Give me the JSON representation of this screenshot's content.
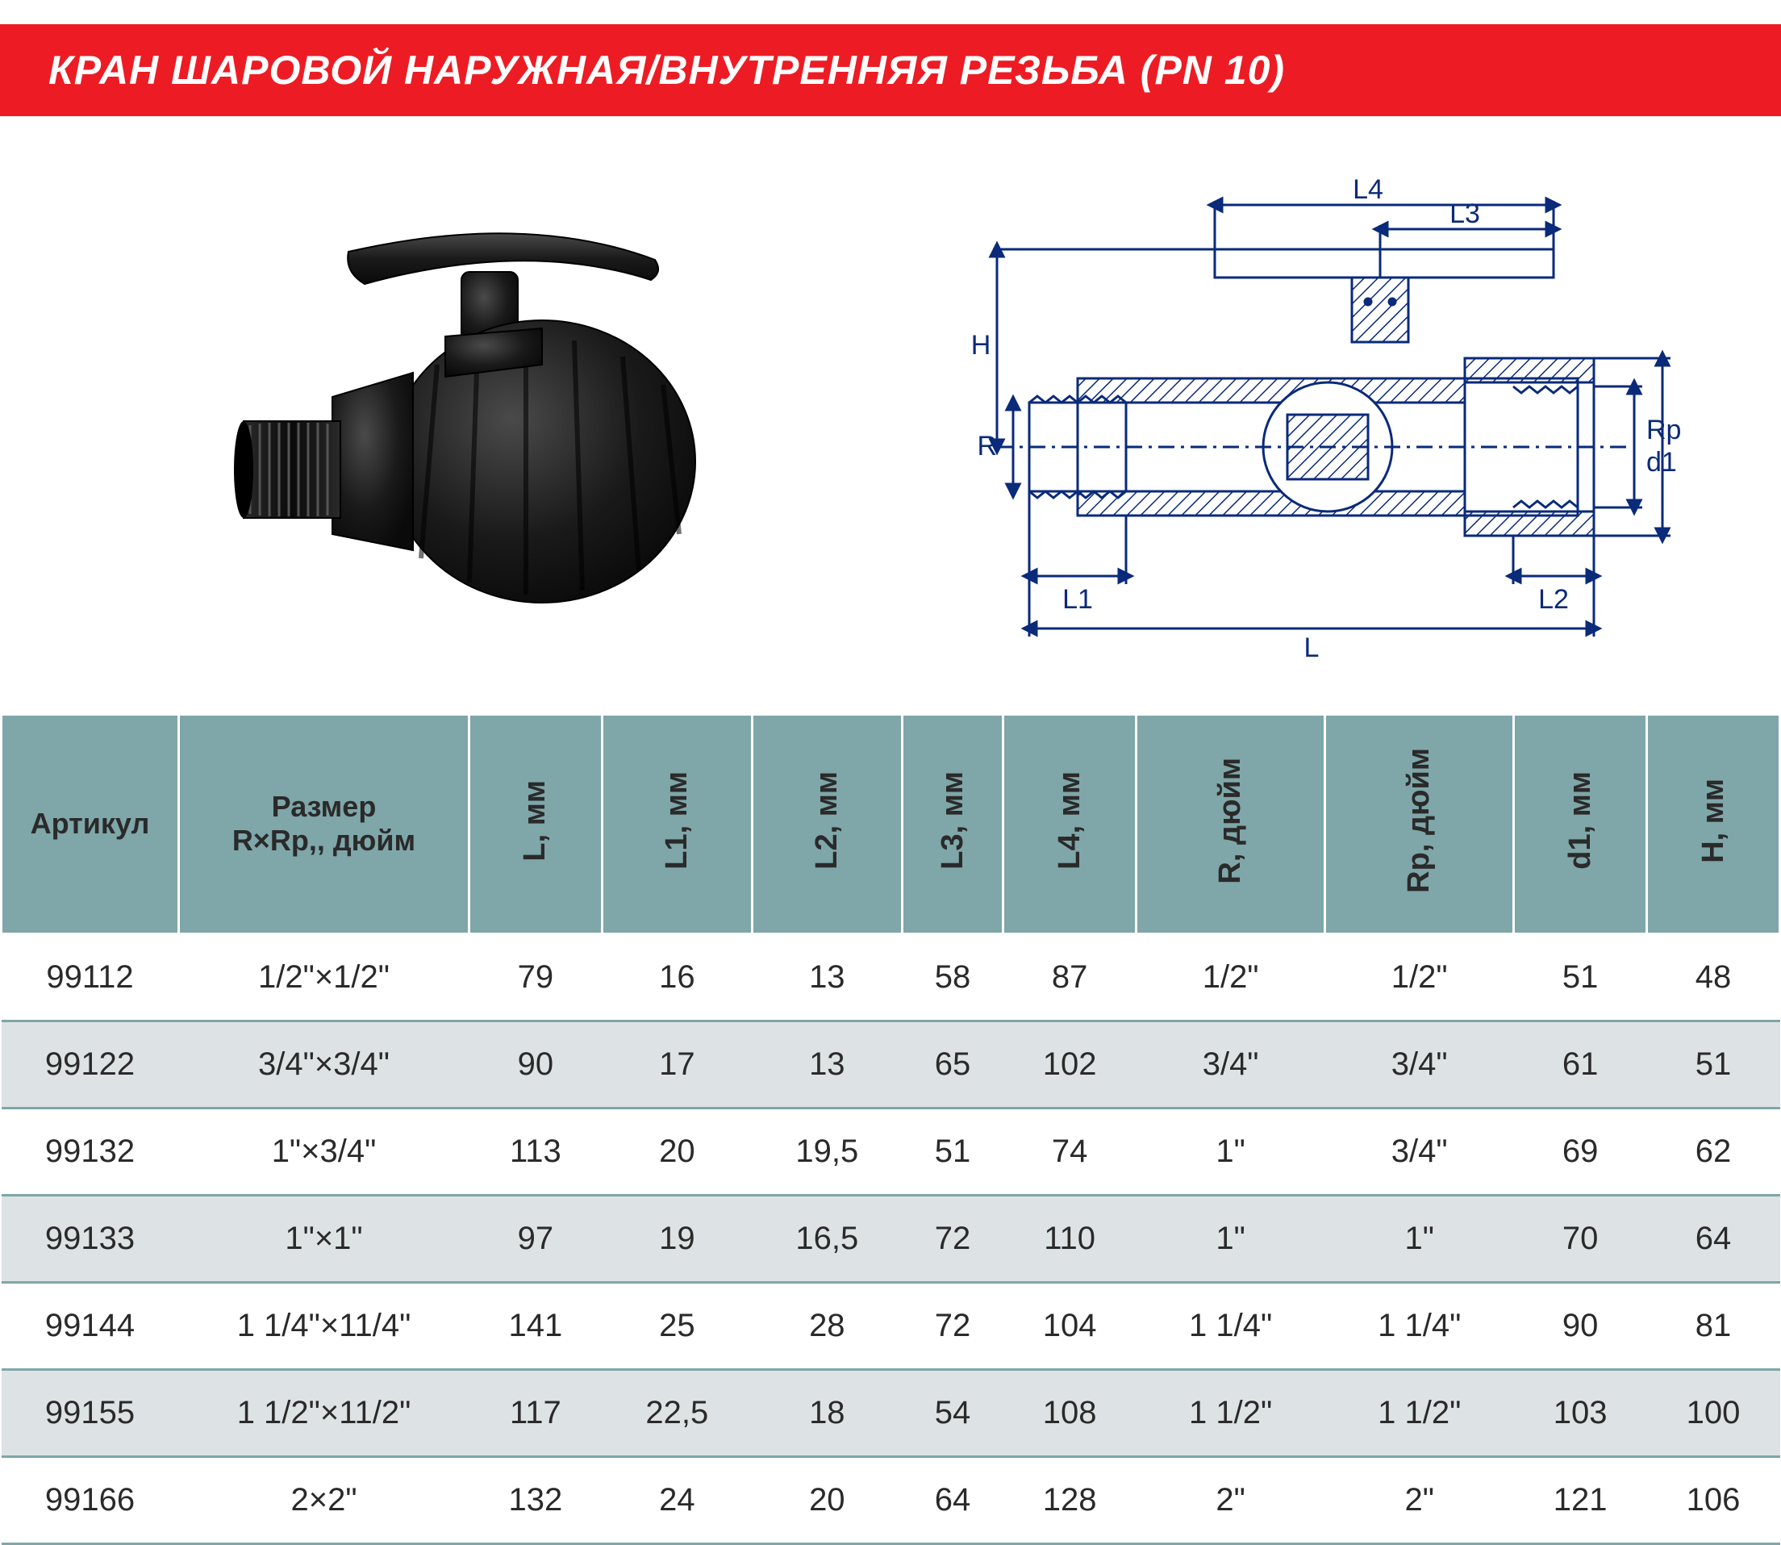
{
  "header": {
    "title": "КРАН ШАРОВОЙ НАРУЖНАЯ/ВНУТРЕННЯЯ РЕЗЬБА (PN 10)",
    "bg_color": "#ed1c24",
    "text_color": "#ffffff",
    "font_size": 50,
    "font_weight": 900
  },
  "diagram": {
    "labels": {
      "L4": "L4",
      "L3": "L3",
      "H": "H",
      "R": "R",
      "Rp": "Rp",
      "d1": "d1",
      "L1": "L1",
      "L2": "L2",
      "L": "L"
    },
    "line_color": "#0a2a7a",
    "line_width": 3,
    "fill_color": "#ffffff",
    "hatch_color": "#0a2a7a",
    "label_font_size": 34
  },
  "photo": {
    "body_color": "#1a1a1a",
    "highlight_color": "#3a3a3a",
    "deep_color": "#0a0a0a"
  },
  "table": {
    "header_bg": "#7fa6a8",
    "row_alt_bg": "#dde3e4",
    "border_color": "#7fa6a8",
    "text_color": "#2a2a2a",
    "header_font_size": 38,
    "cell_font_size": 40,
    "columns": [
      "Артикул",
      "Размер R×Rp,, дюйм",
      "L, мм",
      "L1, мм",
      "L2, мм",
      "L3, мм",
      "L4, мм",
      "R, дюйм",
      "Rp, дюйм",
      "d1, мм",
      "H, мм"
    ],
    "column_orientation": [
      "h",
      "h",
      "v",
      "v",
      "v",
      "v",
      "v",
      "v",
      "v",
      "v",
      "v"
    ],
    "rows": [
      [
        "99112",
        "1/2\"×1/2\"",
        "79",
        "16",
        "13",
        "58",
        "87",
        "1/2\"",
        "1/2\"",
        "51",
        "48"
      ],
      [
        "99122",
        "3/4\"×3/4\"",
        "90",
        "17",
        "13",
        "65",
        "102",
        "3/4\"",
        "3/4\"",
        "61",
        "51"
      ],
      [
        "99132",
        "1\"×3/4\"",
        "113",
        "20",
        "19,5",
        "51",
        "74",
        "1\"",
        "3/4\"",
        "69",
        "62"
      ],
      [
        "99133",
        "1\"×1\"",
        "97",
        "19",
        "16,5",
        "72",
        "110",
        "1\"",
        "1\"",
        "70",
        "64"
      ],
      [
        "99144",
        "1 1/4\"×11/4\"",
        "141",
        "25",
        "28",
        "72",
        "104",
        "1 1/4\"",
        "1 1/4\"",
        "90",
        "81"
      ],
      [
        "99155",
        "1 1/2\"×11/2\"",
        "117",
        "22,5",
        "18",
        "54",
        "108",
        "1 1/2\"",
        "1 1/2\"",
        "103",
        "100"
      ],
      [
        "99166",
        "2×2\"",
        "132",
        "24",
        "20",
        "64",
        "128",
        "2\"",
        "2\"",
        "121",
        "106"
      ]
    ]
  }
}
